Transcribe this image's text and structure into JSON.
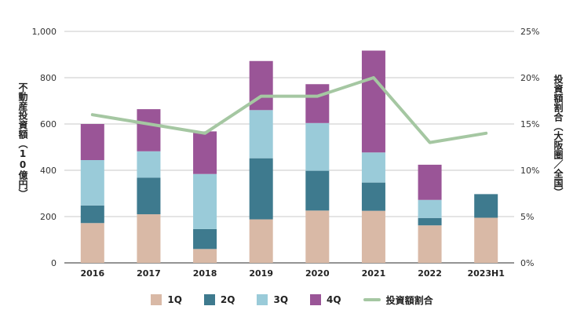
{
  "chart_data": {
    "type": "bar",
    "stacked": true,
    "categories": [
      "2016",
      "2017",
      "2018",
      "2019",
      "2020",
      "2021",
      "2022",
      "2023H1"
    ],
    "series": [
      {
        "name": "1Q",
        "color": "#d9b9a6",
        "values": [
          172,
          210,
          60,
          188,
          226,
          225,
          162,
          195
        ]
      },
      {
        "name": "2Q",
        "color": "#3e7a8e",
        "values": [
          76,
          158,
          86,
          264,
          172,
          122,
          32,
          102
        ]
      },
      {
        "name": "3Q",
        "color": "#9acbd9",
        "values": [
          196,
          114,
          238,
          208,
          206,
          130,
          78,
          0
        ]
      },
      {
        "name": "4Q",
        "color": "#9a5597",
        "values": [
          156,
          182,
          184,
          212,
          168,
          440,
          152,
          0
        ]
      }
    ],
    "line_series": {
      "name": "投資額割合",
      "color": "#a5c7a2",
      "values": [
        16,
        15,
        14,
        18,
        18,
        20,
        13,
        14
      ]
    },
    "ylabel": "不動産投資額（10億円）",
    "y2label": "投資額割合（大阪圏／全国）",
    "ylim": [
      0,
      1000
    ],
    "y2lim": [
      0,
      25
    ],
    "yticks": [
      "0",
      "200",
      "400",
      "600",
      "800",
      "1,000"
    ],
    "y2ticks": [
      "0%",
      "5%",
      "10%",
      "15%",
      "20%",
      "25%"
    ],
    "grid": true,
    "legend_position": "bottom"
  }
}
